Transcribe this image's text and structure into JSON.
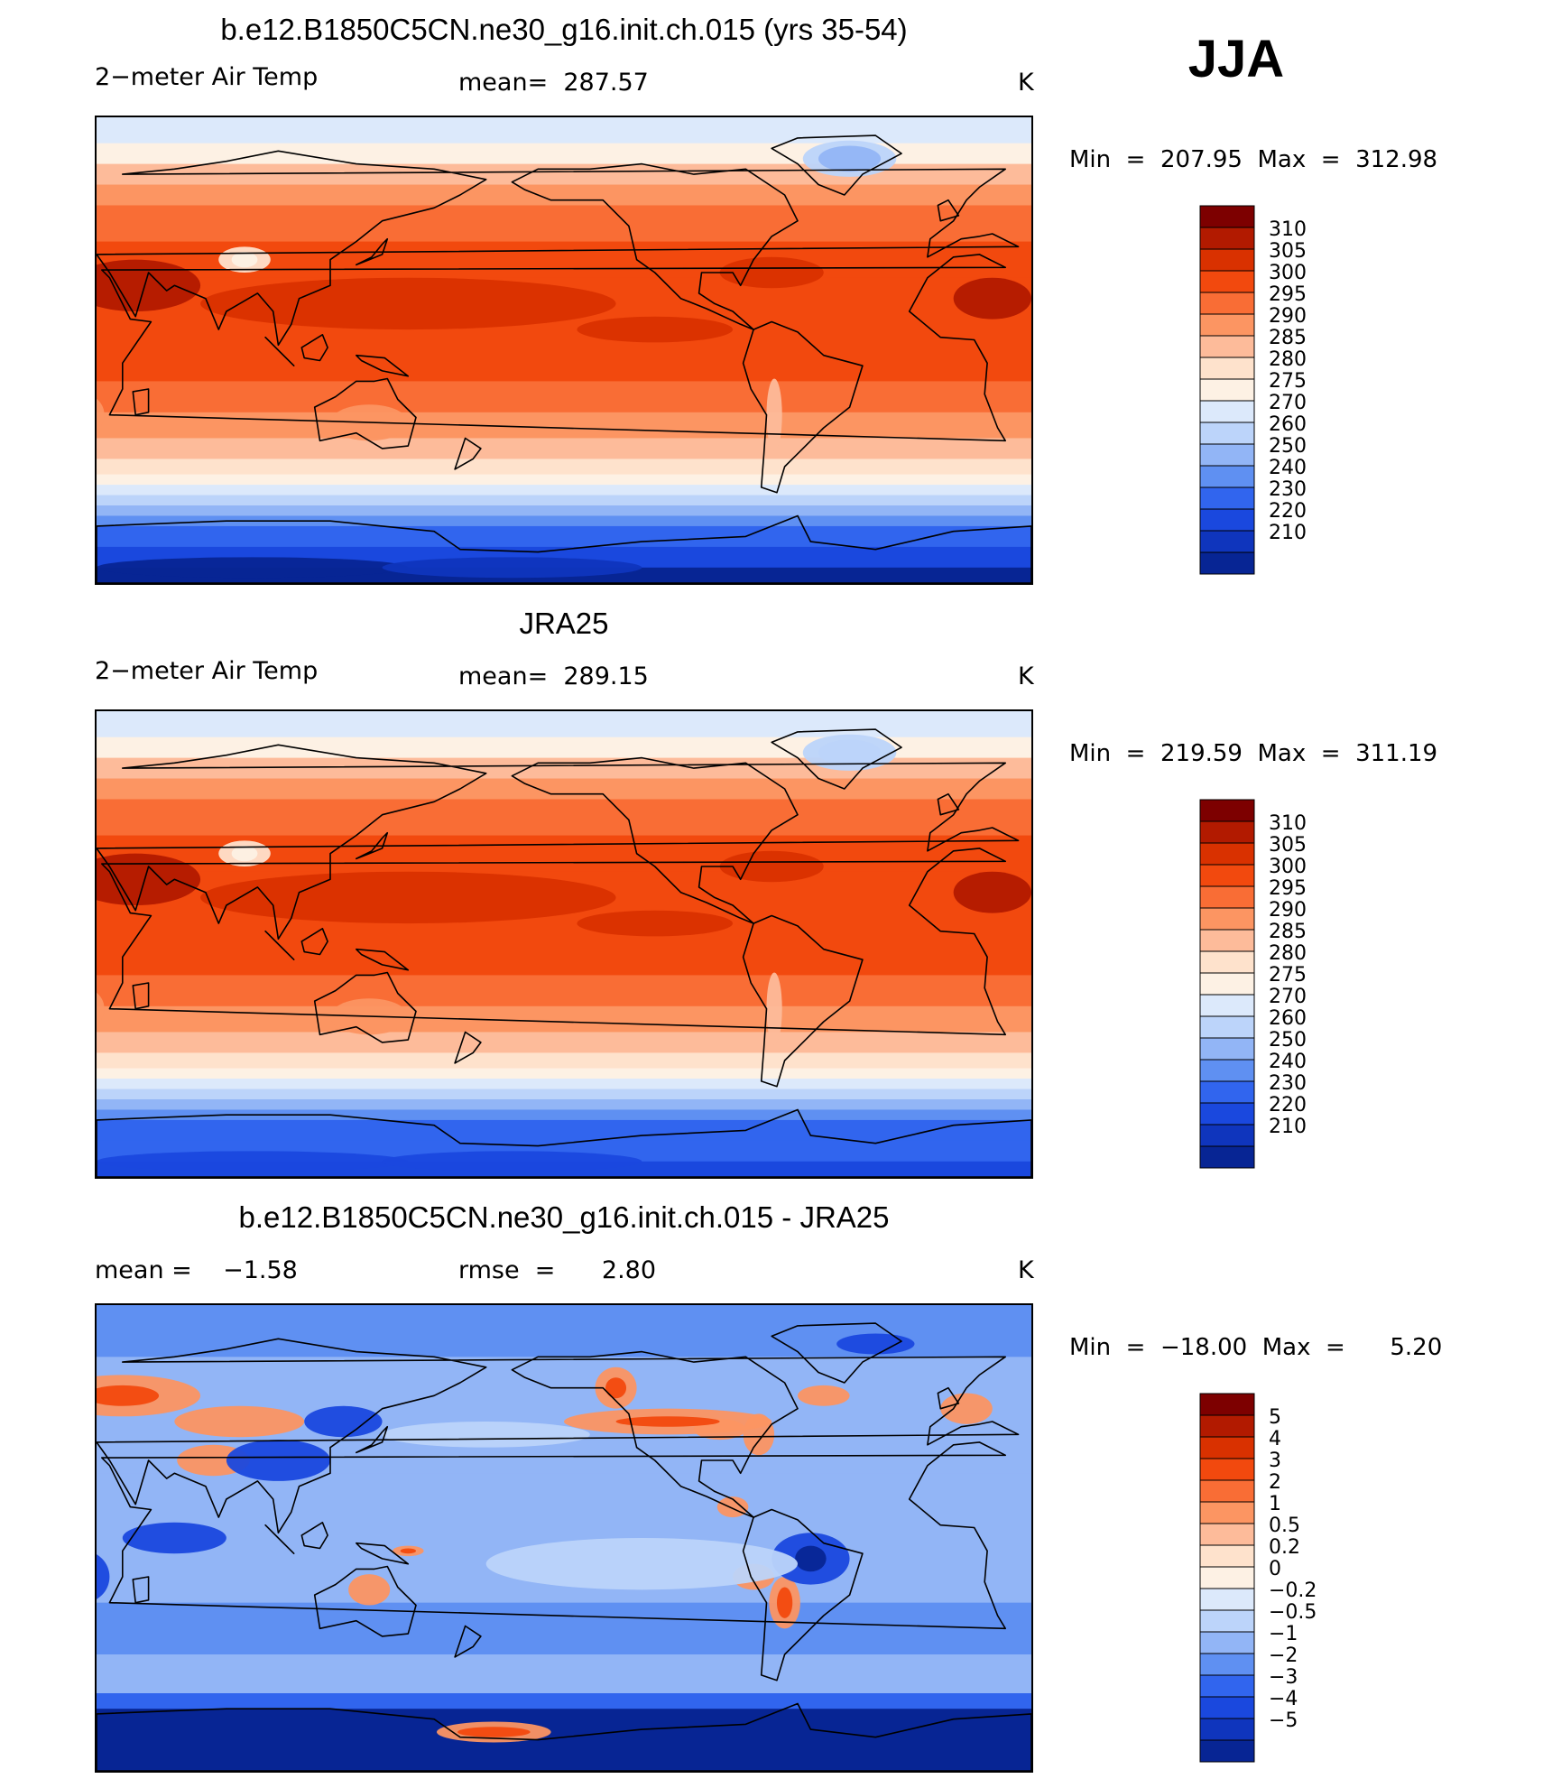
{
  "season": "JJA",
  "chart_data": [
    {
      "type": "heatmap",
      "title": "b.e12.B1850C5CN.ne30_g16.init.ch.015 (yrs 35-54)",
      "variable": "2−meter Air Temp",
      "stat_text": "mean=  287.57",
      "units": "K",
      "min_max_text": "Min  =  207.95  Max  =  312.98",
      "min": 207.95,
      "max": 312.98,
      "mean": 287.57,
      "colorbar_labels": [
        "310",
        "305",
        "300",
        "295",
        "290",
        "285",
        "280",
        "275",
        "270",
        "260",
        "250",
        "240",
        "230",
        "220",
        "210"
      ],
      "colorbar_colors": [
        "#7d0000",
        "#b21a00",
        "#d93100",
        "#f2490e",
        "#f96d35",
        "#fc9562",
        "#fdbb9a",
        "#fee2cc",
        "#fdf1e4",
        "#dce9fb",
        "#bcd4fa",
        "#92b5f6",
        "#5f90f2",
        "#3165ee",
        "#1a48de",
        "#0f35bd",
        "#072594"
      ],
      "pattern": "temp"
    },
    {
      "type": "heatmap",
      "title": "JRA25",
      "variable": "2−meter Air Temp",
      "stat_text": "mean=  289.15",
      "units": "K",
      "min_max_text": "Min  =  219.59  Max  =  311.19",
      "min": 219.59,
      "max": 311.19,
      "mean": 289.15,
      "colorbar_labels": [
        "310",
        "305",
        "300",
        "295",
        "290",
        "285",
        "280",
        "275",
        "270",
        "260",
        "250",
        "240",
        "230",
        "220",
        "210"
      ],
      "colorbar_colors": [
        "#7d0000",
        "#b21a00",
        "#d93100",
        "#f2490e",
        "#f96d35",
        "#fc9562",
        "#fdbb9a",
        "#fee2cc",
        "#fdf1e4",
        "#dce9fb",
        "#bcd4fa",
        "#92b5f6",
        "#5f90f2",
        "#3165ee",
        "#1a48de",
        "#0f35bd",
        "#072594"
      ],
      "pattern": "temp_obs"
    },
    {
      "type": "heatmap",
      "title": "b.e12.B1850C5CN.ne30_g16.init.ch.015 - JRA25",
      "variable": "mean =    −1.58",
      "stat_text": "rmse  =      2.80",
      "units": "K",
      "min_max_text": "Min  =  −18.00  Max  =      5.20",
      "min": -18.0,
      "max": 5.2,
      "mean": -1.58,
      "rmse": 2.8,
      "colorbar_labels": [
        "5",
        "4",
        "3",
        "2",
        "1",
        "0.5",
        "0.2",
        "0",
        "−0.2",
        "−0.5",
        "−1",
        "−2",
        "−3",
        "−4",
        "−5"
      ],
      "colorbar_colors": [
        "#7d0000",
        "#b21a00",
        "#d93100",
        "#f2490e",
        "#f96d35",
        "#fc9562",
        "#fdbb9a",
        "#fee2cc",
        "#fdf1e4",
        "#dce9fb",
        "#bcd4fa",
        "#92b5f6",
        "#5f90f2",
        "#3165ee",
        "#1a48de",
        "#0f35bd",
        "#072594"
      ],
      "pattern": "diff"
    }
  ]
}
